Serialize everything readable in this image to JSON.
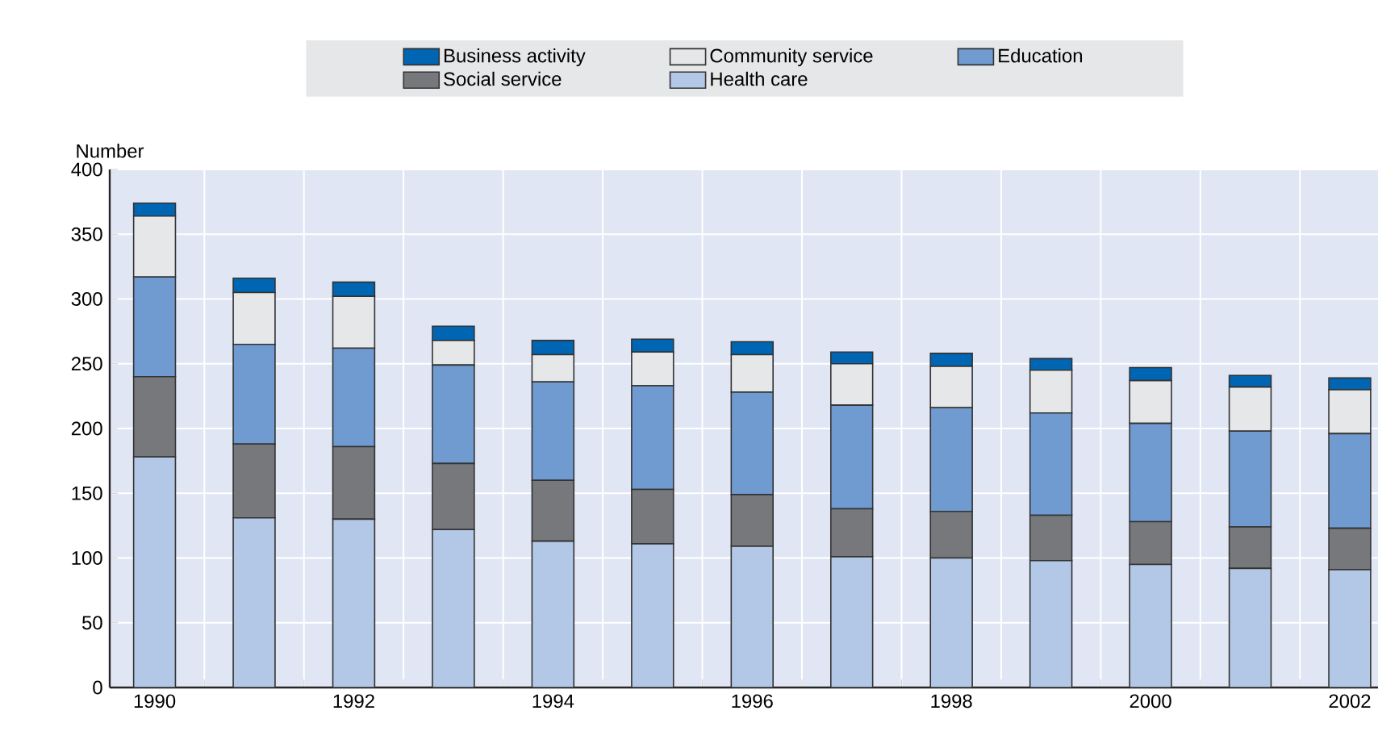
{
  "chart_data": {
    "type": "bar",
    "stacked": true,
    "ylabel": "Number",
    "categories": [
      "1990",
      null,
      "1992",
      null,
      "1994",
      null,
      "1996",
      null,
      "1998",
      null,
      "2000",
      null,
      "2002"
    ],
    "series": [
      {
        "name": "Health care",
        "color": "#b3c7e6",
        "values": [
          178,
          131,
          130,
          122,
          113,
          111,
          109,
          101,
          100,
          98,
          95,
          92,
          91
        ]
      },
      {
        "name": "Social service",
        "color": "#76787b",
        "values": [
          62,
          57,
          56,
          51,
          47,
          42,
          40,
          37,
          36,
          35,
          33,
          32,
          32
        ]
      },
      {
        "name": "Education",
        "color": "#6f9bd1",
        "values": [
          77,
          77,
          76,
          76,
          76,
          80,
          79,
          80,
          80,
          79,
          76,
          74,
          73
        ]
      },
      {
        "name": "Community service",
        "color": "#e6e7e8",
        "values": [
          47,
          40,
          40,
          19,
          21,
          26,
          29,
          32,
          32,
          33,
          33,
          34,
          34
        ]
      },
      {
        "name": "Business activity",
        "color": "#0066b3",
        "values": [
          10,
          11,
          11,
          11,
          11,
          10,
          10,
          9,
          10,
          9,
          10,
          9,
          9
        ]
      }
    ],
    "ylim": [
      0,
      400
    ],
    "yticks": [
      0,
      50,
      100,
      150,
      200,
      250,
      300,
      350,
      400
    ],
    "grid": true,
    "legend": "top"
  }
}
